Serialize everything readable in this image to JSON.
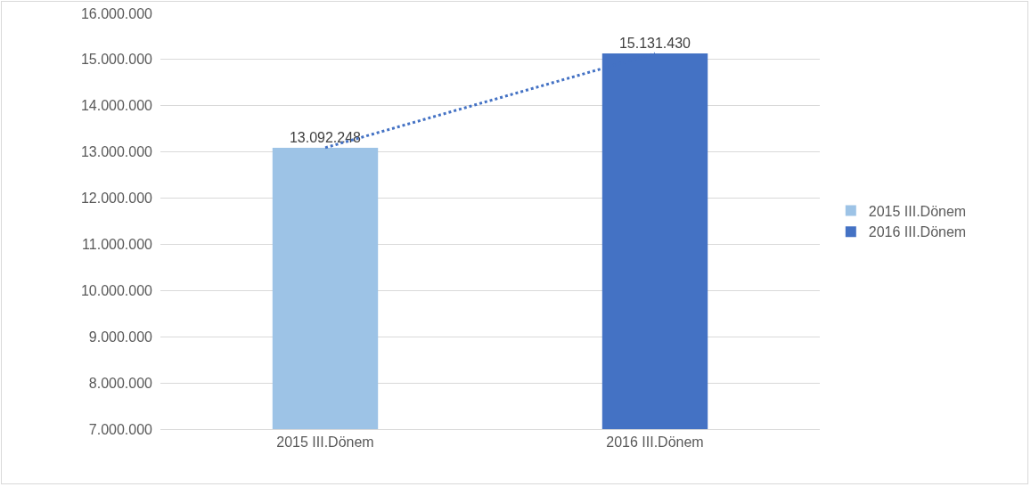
{
  "chart_data": {
    "type": "bar",
    "categories": [
      "2015 III.Dönem",
      "2016 III.Dönem"
    ],
    "series": [
      {
        "name": "2015 III.Dönem",
        "color": "#9dc3e6",
        "values": [
          13092248,
          null
        ],
        "value_labels": [
          "13.092.248",
          null
        ]
      },
      {
        "name": "2016 III.Dönem",
        "color": "#4472c4",
        "values": [
          null,
          15131430
        ],
        "value_labels": [
          null,
          "15.131.430"
        ]
      },
      {
        "type": "line",
        "color": "#4472c4",
        "line_style": "dotted",
        "marker": "none",
        "values": [
          13092248,
          15131430
        ]
      }
    ],
    "ylim": [
      7000000,
      16000000
    ],
    "yticks": [
      {
        "value": 7000000,
        "label": "7.000.000"
      },
      {
        "value": 8000000,
        "label": "8.000.000"
      },
      {
        "value": 9000000,
        "label": "9.000.000"
      },
      {
        "value": 10000000,
        "label": "10.000.000"
      },
      {
        "value": 11000000,
        "label": "11.000.000"
      },
      {
        "value": 12000000,
        "label": "12.000.000"
      },
      {
        "value": 13000000,
        "label": "13.000.000"
      },
      {
        "value": 14000000,
        "label": "14.000.000"
      },
      {
        "value": 15000000,
        "label": "15.000.000"
      },
      {
        "value": 16000000,
        "label": "16.000.000"
      }
    ],
    "grid": "y",
    "legend": "right"
  }
}
